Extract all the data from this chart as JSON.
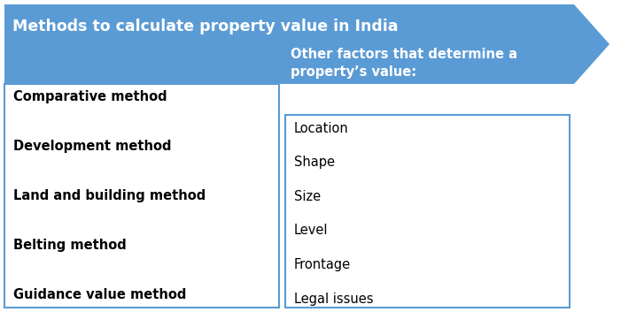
{
  "title": "Methods to calculate property value in India",
  "title_color": "#FFFFFF",
  "arrow_color": "#5B9BD5",
  "left_methods": [
    "Comparative method",
    "Development method",
    "Land and building method",
    "Belting method",
    "Guidance value method"
  ],
  "right_header_line1": "Other factors that determine a",
  "right_header_line2": "property’s value:",
  "right_items": [
    "Location",
    "Shape",
    "Size",
    "Level",
    "Frontage",
    "Legal issues"
  ],
  "box_edge_color": "#5B9BD5",
  "text_color_left": "#000000",
  "text_color_right": "#000000",
  "header_text_color": "#FFFFFF",
  "bg_color": "#FFFFFF",
  "fig_w": 7.01,
  "fig_h": 3.53,
  "dpi": 100
}
